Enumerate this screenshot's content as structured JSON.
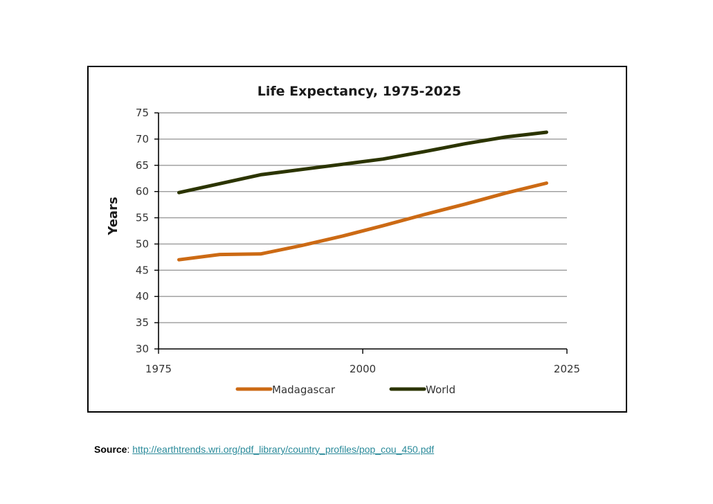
{
  "chart_data": {
    "type": "line",
    "title": "Life Expectancy, 1975-2025",
    "xlabel": "",
    "ylabel": "Years",
    "xlim": [
      1975,
      2025
    ],
    "ylim": [
      30,
      75
    ],
    "x_ticks": [
      "1975",
      "2000",
      "2025"
    ],
    "y_ticks": [
      "30",
      "35",
      "40",
      "45",
      "50",
      "55",
      "60",
      "65",
      "70",
      "75"
    ],
    "grid": true,
    "legend_position": "bottom",
    "series": [
      {
        "name": "Madagascar",
        "color": "#cc6a14",
        "x": [
          1977.5,
          1982.5,
          1987.5,
          1992.5,
          1997.5,
          2002.5,
          2007.5,
          2012.5,
          2017.5,
          2022.5
        ],
        "values": [
          47.0,
          48.0,
          48.1,
          49.7,
          51.5,
          53.5,
          55.6,
          57.6,
          59.7,
          61.6
        ]
      },
      {
        "name": "World",
        "color": "#2b3400",
        "x": [
          1977.5,
          1982.5,
          1987.5,
          1992.5,
          1997.5,
          2002.5,
          2007.5,
          2012.5,
          2017.5,
          2022.5
        ],
        "values": [
          59.8,
          61.5,
          63.2,
          64.2,
          65.2,
          66.2,
          67.6,
          69.1,
          70.4,
          71.3
        ]
      }
    ]
  },
  "source": {
    "label": "Source",
    "separator": ":",
    "url_text": "http://earthtrends.wri.org/pdf_library/country_profiles/pop_cou_450.pdf"
  }
}
